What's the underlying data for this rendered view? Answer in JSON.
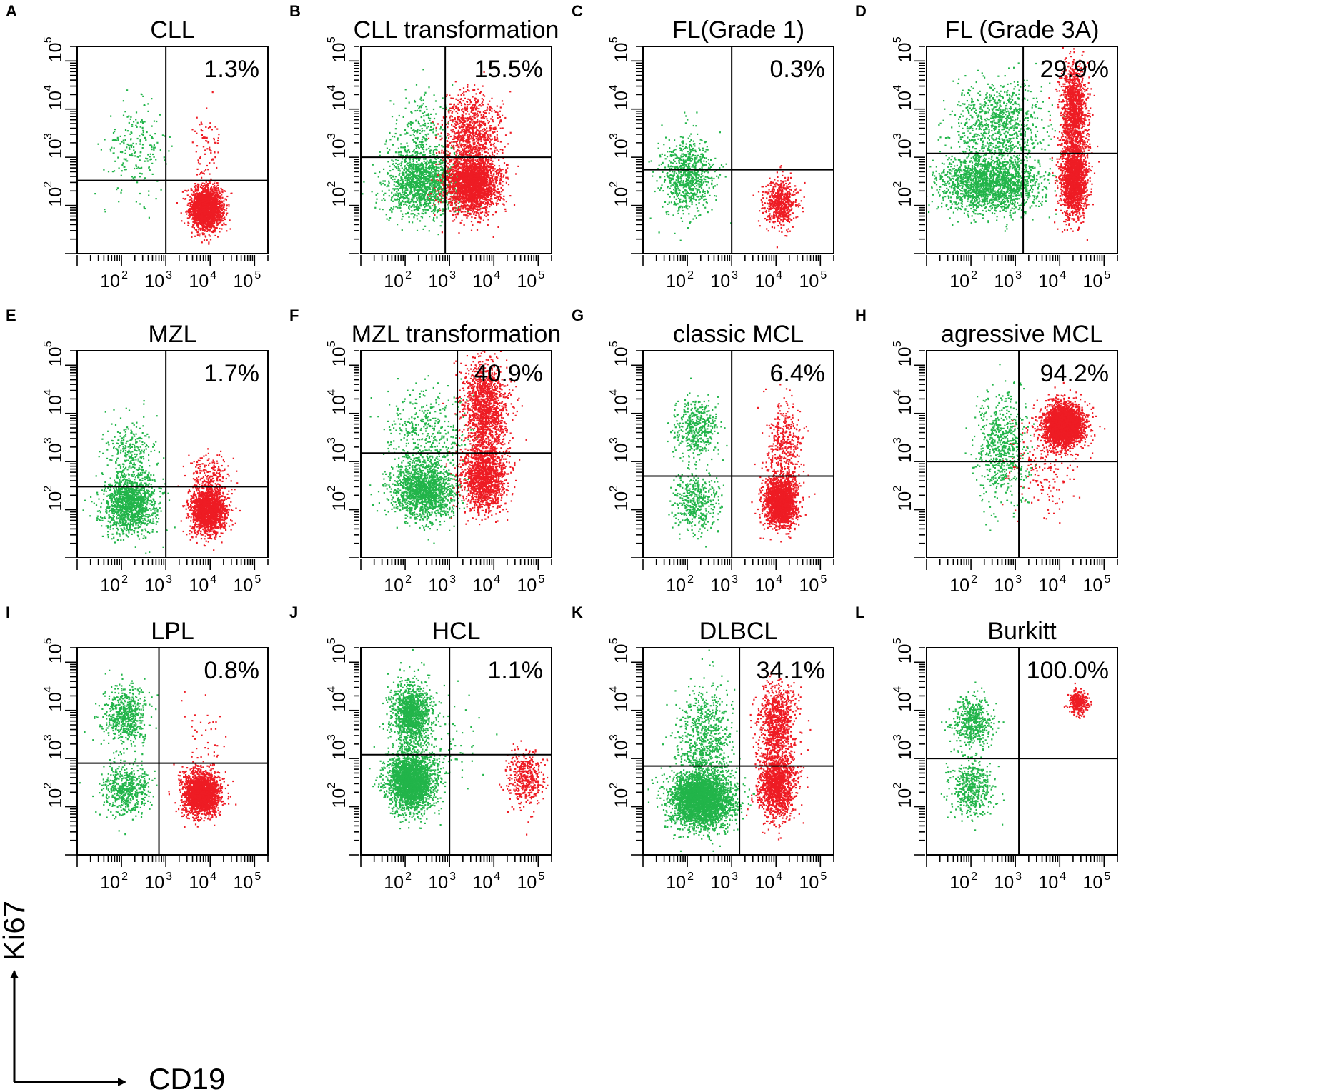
{
  "chart_data": [
    {
      "letter": "A",
      "title": "CLL",
      "percent": "1.3%",
      "gate": {
        "x": 1000,
        "y": 330
      },
      "clusters": [
        {
          "color": "green",
          "cx": 200,
          "cy": 1500,
          "sx": 0.35,
          "sy": 0.45,
          "n": 220
        },
        {
          "color": "red",
          "cx": 8000,
          "cy": 90,
          "sx": 0.18,
          "sy": 0.22,
          "n": 2000
        },
        {
          "color": "red",
          "cx": 8000,
          "cy": 1500,
          "sx": 0.15,
          "sy": 0.4,
          "n": 80
        }
      ]
    },
    {
      "letter": "B",
      "title": "CLL transformation",
      "percent": "15.5%",
      "gate": {
        "x": 800,
        "y": 1000
      },
      "clusters": [
        {
          "color": "green",
          "cx": 250,
          "cy": 300,
          "sx": 0.4,
          "sy": 0.35,
          "n": 1400
        },
        {
          "color": "green",
          "cx": 200,
          "cy": 3000,
          "sx": 0.35,
          "sy": 0.4,
          "n": 250
        },
        {
          "color": "red",
          "cx": 3000,
          "cy": 300,
          "sx": 0.3,
          "sy": 0.3,
          "n": 2400
        },
        {
          "color": "red",
          "cx": 3000,
          "cy": 3500,
          "sx": 0.3,
          "sy": 0.4,
          "n": 900
        }
      ]
    },
    {
      "letter": "C",
      "title": "FL(Grade 1)",
      "percent": "0.3%",
      "gate": {
        "x": 1000,
        "y": 550
      },
      "clusters": [
        {
          "color": "green",
          "cx": 100,
          "cy": 400,
          "sx": 0.3,
          "sy": 0.4,
          "n": 800
        },
        {
          "color": "red",
          "cx": 12000,
          "cy": 120,
          "sx": 0.18,
          "sy": 0.25,
          "n": 600
        }
      ]
    },
    {
      "letter": "D",
      "title": "FL (Grade 3A)",
      "percent": "29.9%",
      "gate": {
        "x": 1500,
        "y": 1200
      },
      "clusters": [
        {
          "color": "green",
          "cx": 250,
          "cy": 300,
          "sx": 0.55,
          "sy": 0.3,
          "n": 2000
        },
        {
          "color": "green",
          "cx": 400,
          "cy": 5000,
          "sx": 0.5,
          "sy": 0.45,
          "n": 900
        },
        {
          "color": "red",
          "cx": 20000,
          "cy": 400,
          "sx": 0.15,
          "sy": 0.4,
          "n": 1800
        },
        {
          "color": "red",
          "cx": 20000,
          "cy": 10000,
          "sx": 0.15,
          "sy": 0.45,
          "n": 1200
        }
      ]
    },
    {
      "letter": "E",
      "title": "MZL",
      "percent": "1.7%",
      "gate": {
        "x": 1000,
        "y": 300
      },
      "clusters": [
        {
          "color": "green",
          "cx": 150,
          "cy": 130,
          "sx": 0.3,
          "sy": 0.3,
          "n": 1300
        },
        {
          "color": "green",
          "cx": 150,
          "cy": 1500,
          "sx": 0.25,
          "sy": 0.35,
          "n": 300
        },
        {
          "color": "red",
          "cx": 9000,
          "cy": 100,
          "sx": 0.2,
          "sy": 0.25,
          "n": 1800
        },
        {
          "color": "red",
          "cx": 9000,
          "cy": 600,
          "sx": 0.25,
          "sy": 0.2,
          "n": 150
        }
      ]
    },
    {
      "letter": "F",
      "title": "MZL transformation",
      "percent": "40.9%",
      "gate": {
        "x": 1500,
        "y": 1500
      },
      "clusters": [
        {
          "color": "green",
          "cx": 250,
          "cy": 250,
          "sx": 0.35,
          "sy": 0.3,
          "n": 1500
        },
        {
          "color": "green",
          "cx": 300,
          "cy": 3000,
          "sx": 0.45,
          "sy": 0.5,
          "n": 500
        },
        {
          "color": "red",
          "cx": 6000,
          "cy": 500,
          "sx": 0.25,
          "sy": 0.35,
          "n": 1500
        },
        {
          "color": "red",
          "cx": 6000,
          "cy": 15000,
          "sx": 0.25,
          "sy": 0.45,
          "n": 1400
        }
      ]
    },
    {
      "letter": "G",
      "title": "classic MCL",
      "percent": "6.4%",
      "gate": {
        "x": 1000,
        "y": 500
      },
      "clusters": [
        {
          "color": "green",
          "cx": 150,
          "cy": 5000,
          "sx": 0.25,
          "sy": 0.3,
          "n": 450
        },
        {
          "color": "green",
          "cx": 150,
          "cy": 150,
          "sx": 0.25,
          "sy": 0.3,
          "n": 450
        },
        {
          "color": "red",
          "cx": 12000,
          "cy": 150,
          "sx": 0.18,
          "sy": 0.25,
          "n": 2000
        },
        {
          "color": "red",
          "cx": 15000,
          "cy": 2000,
          "sx": 0.2,
          "sy": 0.45,
          "n": 400
        }
      ]
    },
    {
      "letter": "H",
      "title": "agressive MCL",
      "percent": "94.2%",
      "gate": {
        "x": 1200,
        "y": 1000
      },
      "clusters": [
        {
          "color": "red",
          "cx": 12000,
          "cy": 6000,
          "sx": 0.22,
          "sy": 0.22,
          "n": 3000
        },
        {
          "color": "red",
          "cx": 4000,
          "cy": 800,
          "sx": 0.35,
          "sy": 0.5,
          "n": 200
        },
        {
          "color": "green",
          "cx": 500,
          "cy": 2000,
          "sx": 0.3,
          "sy": 0.55,
          "n": 650
        }
      ]
    },
    {
      "letter": "I",
      "title": "LPL",
      "percent": "0.8%",
      "gate": {
        "x": 700,
        "y": 800
      },
      "clusters": [
        {
          "color": "green",
          "cx": 120,
          "cy": 8000,
          "sx": 0.25,
          "sy": 0.3,
          "n": 600
        },
        {
          "color": "green",
          "cx": 120,
          "cy": 250,
          "sx": 0.25,
          "sy": 0.25,
          "n": 550
        },
        {
          "color": "red",
          "cx": 6000,
          "cy": 200,
          "sx": 0.2,
          "sy": 0.22,
          "n": 2200
        },
        {
          "color": "red",
          "cx": 7000,
          "cy": 3500,
          "sx": 0.2,
          "sy": 0.4,
          "n": 40
        }
      ]
    },
    {
      "letter": "J",
      "title": "HCL",
      "percent": "1.1%",
      "gate": {
        "x": 1000,
        "y": 1200
      },
      "clusters": [
        {
          "color": "green",
          "cx": 130,
          "cy": 8000,
          "sx": 0.22,
          "sy": 0.35,
          "n": 1300
        },
        {
          "color": "green",
          "cx": 130,
          "cy": 350,
          "sx": 0.25,
          "sy": 0.3,
          "n": 2500
        },
        {
          "color": "green",
          "cx": 600,
          "cy": 2000,
          "sx": 0.4,
          "sy": 0.6,
          "n": 120
        },
        {
          "color": "red",
          "cx": 50000,
          "cy": 400,
          "sx": 0.2,
          "sy": 0.3,
          "n": 450
        }
      ]
    },
    {
      "letter": "K",
      "title": "DLBCL",
      "percent": "34.1%",
      "gate": {
        "x": 1500,
        "y": 700
      },
      "clusters": [
        {
          "color": "green",
          "cx": 200,
          "cy": 150,
          "sx": 0.35,
          "sy": 0.3,
          "n": 3200
        },
        {
          "color": "green",
          "cx": 250,
          "cy": 3000,
          "sx": 0.3,
          "sy": 0.5,
          "n": 700
        },
        {
          "color": "red",
          "cx": 10000,
          "cy": 300,
          "sx": 0.2,
          "sy": 0.35,
          "n": 1500
        },
        {
          "color": "red",
          "cx": 10000,
          "cy": 6000,
          "sx": 0.2,
          "sy": 0.4,
          "n": 900
        }
      ]
    },
    {
      "letter": "L",
      "title": "Burkitt",
      "percent": "100.0%",
      "gate": {
        "x": 1200,
        "y": 1000
      },
      "clusters": [
        {
          "color": "green",
          "cx": 100,
          "cy": 6000,
          "sx": 0.22,
          "sy": 0.25,
          "n": 500
        },
        {
          "color": "green",
          "cx": 100,
          "cy": 250,
          "sx": 0.22,
          "sy": 0.3,
          "n": 500
        },
        {
          "color": "red",
          "cx": 25000,
          "cy": 15000,
          "sx": 0.1,
          "sy": 0.12,
          "n": 300
        }
      ]
    }
  ],
  "axes": {
    "x_ticks": [
      {
        "base": "10",
        "exp": "2",
        "value": 100
      },
      {
        "base": "10",
        "exp": "3",
        "value": 1000
      },
      {
        "base": "10",
        "exp": "4",
        "value": 10000
      },
      {
        "base": "10",
        "exp": "5",
        "value": 100000
      }
    ],
    "y_ticks": [
      {
        "base": "10",
        "exp": "2",
        "value": 100
      },
      {
        "base": "10",
        "exp": "3",
        "value": 1000
      },
      {
        "base": "10",
        "exp": "4",
        "value": 10000
      },
      {
        "base": "10",
        "exp": "5",
        "value": 100000
      }
    ],
    "range": [
      10,
      200000
    ],
    "xlabel": "CD19",
    "ylabel": "Ki67"
  },
  "colors": {
    "green": "#22b54a",
    "red": "#ee1c24",
    "frame": "#000000"
  }
}
